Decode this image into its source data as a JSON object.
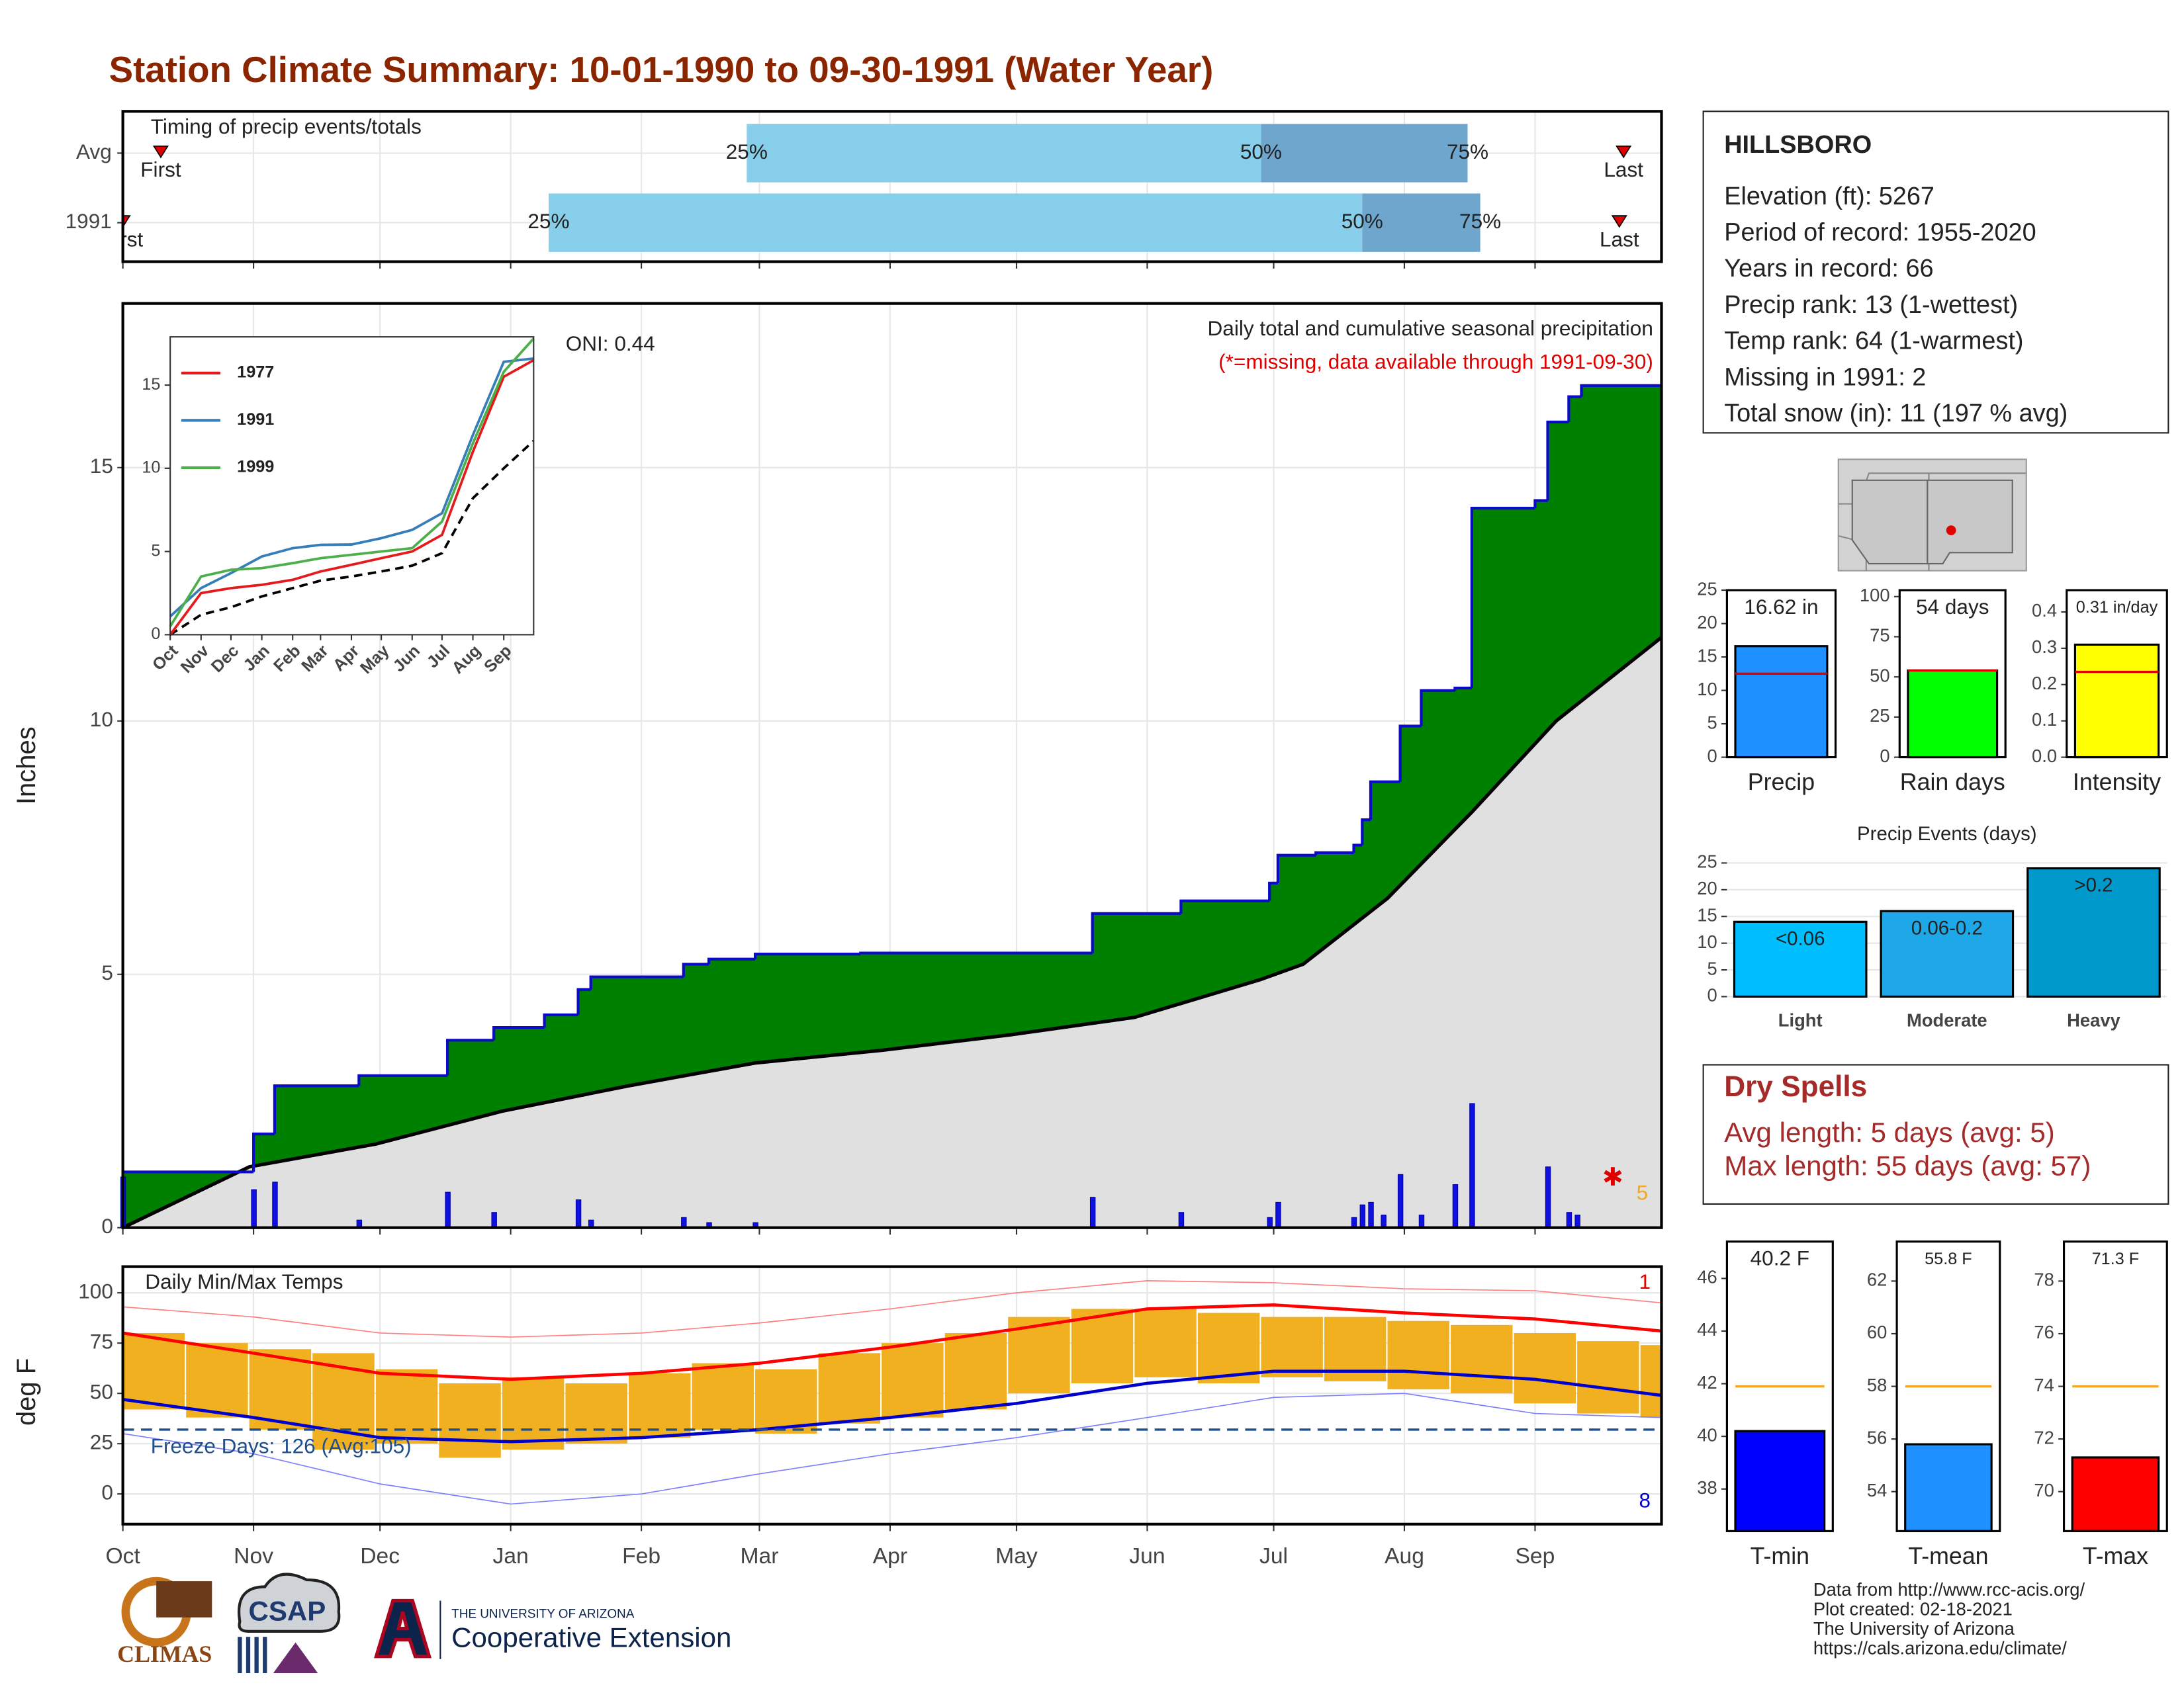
{
  "title": "Station Climate Summary: 10-01-1990 to 09-30-1991 (Water Year)",
  "station": {
    "name": "HILLSBORO",
    "lines": [
      "Elevation (ft): 5267",
      "Period of record: 1955-2020",
      "Years in record: 66",
      "Precip rank: 13 (1-wettest)",
      "Temp rank: 64 (1-warmest)",
      "Missing in 1991: 2",
      "Total snow (in): 11 (197 % avg)"
    ]
  },
  "dry_spells": {
    "title": "Dry Spells",
    "lines": [
      "Avg length: 5 days (avg: 5)",
      "Max length: 55 days (avg: 57)"
    ]
  },
  "footer": [
    "Data from http://www.rcc-acis.org/",
    "Plot created: 02-18-2021",
    "The University of Arizona",
    "https://cals.arizona.edu/climate/"
  ],
  "logos": [
    "CLIMAS",
    "CSAP",
    "THE UNIVERSITY OF ARIZONA",
    "Cooperative Extension"
  ],
  "chart_data": [
    {
      "type": "timing",
      "title": "Timing of precip events/totals",
      "categories": [
        "Avg",
        "1991"
      ],
      "first": [
        9,
        0
      ],
      "q25": [
        148,
        101
      ],
      "q50": [
        270,
        294
      ],
      "q75": [
        319,
        322
      ],
      "last": [
        356,
        355
      ],
      "labels": {
        "first": "First",
        "last": "Last",
        "q25": "25%",
        "q50": "50%",
        "q75": "75%"
      },
      "colors": [
        "#87ceeb",
        "#6fa6cd"
      ],
      "marker_color": "#e00000",
      "xlim": [
        0,
        365
      ],
      "xticks": [
        0,
        31,
        61,
        92,
        123,
        151,
        182,
        212,
        243,
        273,
        304,
        335
      ],
      "grid": true
    },
    {
      "type": "cumulative",
      "title": "Daily total and cumulative seasonal precipitation",
      "subtitle": "(*=missing, data available through 1991-09-30)",
      "annotation": "ONI: 0.44",
      "y_label": "Inches",
      "missing_count": 5,
      "xlim": [
        0,
        365
      ],
      "ylim": [
        0,
        18.24
      ],
      "yticks": [
        0,
        5,
        10,
        15
      ],
      "xticks": [
        0,
        31,
        61,
        92,
        123,
        151,
        182,
        212,
        243,
        273,
        304,
        335
      ],
      "grid": true,
      "cumulative": {
        "color": "#0a0ac8",
        "fill": "#008000",
        "x": [
          0,
          31,
          36,
          56,
          77,
          88,
          100,
          108,
          111,
          133,
          139,
          150,
          175,
          230,
          251,
          272,
          274,
          283,
          292,
          294,
          296,
          303,
          308,
          316,
          320,
          335,
          338,
          343,
          346
        ],
        "values": [
          1.1,
          1.85,
          2.8,
          3.0,
          3.7,
          3.95,
          4.2,
          4.7,
          4.95,
          5.2,
          5.3,
          5.4,
          5.42,
          6.2,
          6.45,
          6.8,
          7.35,
          7.4,
          7.55,
          8.05,
          8.8,
          9.9,
          10.6,
          10.65,
          14.2,
          14.35,
          15.9,
          16.4,
          16.62
        ]
      },
      "average": {
        "color": "#000000",
        "fill": "#e0e0e0",
        "x": [
          0,
          30,
          60,
          90,
          120,
          150,
          180,
          210,
          240,
          270,
          280,
          300,
          320,
          340,
          365
        ],
        "values": [
          0,
          1.2,
          1.65,
          2.3,
          2.8,
          3.25,
          3.5,
          3.8,
          4.15,
          4.9,
          5.2,
          6.5,
          8.2,
          10.0,
          11.65
        ]
      },
      "daily": {
        "color": "#1010e0",
        "x": [
          0,
          31,
          36,
          56,
          77,
          88,
          108,
          111,
          133,
          139,
          150,
          230,
          251,
          272,
          274,
          292,
          294,
          296,
          299,
          303,
          308,
          316,
          320,
          338,
          343,
          345
        ],
        "values": [
          1.0,
          0.75,
          0.9,
          0.15,
          0.7,
          0.3,
          0.55,
          0.15,
          0.2,
          0.1,
          0.1,
          0.6,
          0.3,
          0.2,
          0.5,
          0.2,
          0.45,
          0.5,
          0.25,
          1.05,
          0.25,
          0.85,
          2.45,
          1.2,
          0.3,
          0.25
        ]
      }
    },
    {
      "type": "inset",
      "xlim": [
        0,
        365
      ],
      "ylim": [
        0,
        17.9
      ],
      "yticks": [
        0,
        5,
        10,
        15
      ],
      "xticks": [
        {
          "value": 0,
          "label": "Oct"
        },
        {
          "value": 31,
          "label": "Nov"
        },
        {
          "value": 61,
          "label": "Dec"
        },
        {
          "value": 92,
          "label": "Jan"
        },
        {
          "value": 123,
          "label": "Feb"
        },
        {
          "value": 151,
          "label": "Mar"
        },
        {
          "value": 182,
          "label": "Apr"
        },
        {
          "value": 212,
          "label": "May"
        },
        {
          "value": 243,
          "label": "Jun"
        },
        {
          "value": 273,
          "label": "Jul"
        },
        {
          "value": 304,
          "label": "Aug"
        },
        {
          "value": 335,
          "label": "Sep"
        }
      ],
      "x": [
        0,
        31,
        61,
        92,
        123,
        151,
        182,
        212,
        243,
        273,
        304,
        335,
        365
      ],
      "series": [
        {
          "name": "1977",
          "color": "#e41a1c",
          "values": [
            0,
            2.5,
            2.8,
            3.0,
            3.3,
            3.8,
            4.2,
            4.6,
            5.0,
            6.0,
            11.0,
            15.5,
            16.5
          ]
        },
        {
          "name": "1991",
          "color": "#377eb8",
          "values": [
            1.1,
            2.8,
            3.7,
            4.7,
            5.2,
            5.4,
            5.42,
            5.8,
            6.3,
            7.3,
            12.0,
            16.4,
            16.6
          ]
        },
        {
          "name": "1999",
          "color": "#4daf4a",
          "values": [
            0.5,
            3.5,
            3.9,
            4.0,
            4.3,
            4.6,
            4.8,
            5.0,
            5.2,
            6.8,
            11.5,
            15.8,
            17.8
          ]
        }
      ],
      "average": {
        "color": "#000000",
        "values": [
          0,
          1.2,
          1.65,
          2.3,
          2.8,
          3.25,
          3.5,
          3.8,
          4.15,
          4.9,
          8.2,
          10.0,
          11.65
        ]
      }
    },
    {
      "type": "temps",
      "title": "Daily Min/Max Temps",
      "y_label": "deg F",
      "freeze_label": "Freeze Days: 126 (Avg:105)",
      "freeze_value": 32,
      "record_high_count": 1,
      "record_low_count": 8,
      "xlim": [
        0,
        365
      ],
      "ylim": [
        -15,
        113
      ],
      "yticks": [
        0,
        25,
        50,
        75,
        100
      ],
      "xticks": [
        {
          "value": 0,
          "label": "Oct"
        },
        {
          "value": 31,
          "label": "Nov"
        },
        {
          "value": 61,
          "label": "Dec"
        },
        {
          "value": 92,
          "label": "Jan"
        },
        {
          "value": 123,
          "label": "Feb"
        },
        {
          "value": 151,
          "label": "Mar"
        },
        {
          "value": 182,
          "label": "Apr"
        },
        {
          "value": 212,
          "label": "May"
        },
        {
          "value": 243,
          "label": "Jun"
        },
        {
          "value": 273,
          "label": "Jul"
        },
        {
          "value": 304,
          "label": "Aug"
        },
        {
          "value": 335,
          "label": "Sep"
        }
      ],
      "avg_x": [
        0,
        31,
        61,
        92,
        123,
        151,
        182,
        212,
        243,
        273,
        304,
        335,
        365
      ],
      "avg_max": {
        "color": "#ff0000",
        "values": [
          80,
          70,
          60,
          57,
          60,
          65,
          73,
          82,
          92,
          94,
          90,
          87,
          81
        ]
      },
      "avg_min": {
        "color": "#0000cd",
        "values": [
          47,
          38,
          28,
          26,
          28,
          32,
          38,
          45,
          55,
          61,
          61,
          57,
          49
        ]
      },
      "record_max": {
        "color": "#ff8080",
        "values": [
          93,
          88,
          80,
          78,
          80,
          85,
          92,
          100,
          106,
          105,
          102,
          101,
          95
        ]
      },
      "record_min": {
        "color": "#8080ff",
        "values": [
          30,
          20,
          5,
          -5,
          0,
          10,
          20,
          28,
          38,
          48,
          50,
          40,
          38
        ]
      },
      "daily": {
        "color": "#f0b020",
        "x": [
          0,
          15,
          30,
          45,
          60,
          75,
          90,
          105,
          120,
          135,
          150,
          165,
          180,
          195,
          210,
          225,
          240,
          255,
          270,
          285,
          300,
          315,
          330,
          345,
          360
        ],
        "lows": [
          42,
          38,
          32,
          22,
          25,
          18,
          22,
          25,
          28,
          32,
          30,
          35,
          38,
          42,
          50,
          55,
          58,
          55,
          58,
          56,
          52,
          50,
          45,
          40,
          38
        ],
        "highs": [
          80,
          75,
          72,
          70,
          62,
          55,
          58,
          55,
          60,
          65,
          62,
          70,
          75,
          80,
          88,
          92,
          92,
          90,
          88,
          88,
          86,
          84,
          80,
          76,
          74
        ]
      }
    },
    {
      "type": "single_bar",
      "categories": [
        "Precip"
      ],
      "values": [
        16.62
      ],
      "value_labels": [
        "16.62 in"
      ],
      "reference": 12.5,
      "color": "#1e90ff",
      "reference_color": "#e00000",
      "ylim": [
        0,
        25
      ],
      "yticks": [
        0,
        5,
        10,
        15,
        20,
        25
      ]
    },
    {
      "type": "single_bar",
      "categories": [
        "Rain days"
      ],
      "values": [
        54
      ],
      "value_labels": [
        "54 days"
      ],
      "reference": 54,
      "color": "#00ff00",
      "reference_color": "#e00000",
      "ylim": [
        0,
        104
      ],
      "yticks": [
        0,
        25,
        50,
        75,
        100
      ]
    },
    {
      "type": "single_bar",
      "categories": [
        "Intensity"
      ],
      "values": [
        0.31
      ],
      "value_labels": [
        "0.31 in/day"
      ],
      "reference": 0.235,
      "color": "#ffff00",
      "reference_color": "#e00000",
      "ylim": [
        0,
        0.46
      ],
      "yticks": [
        {
          "value": 0,
          "label": "0.0"
        },
        0.1,
        0.2,
        0.3,
        0.4
      ]
    },
    {
      "type": "bar",
      "title": "Precip Events (days)",
      "categories": [
        "Light",
        "Moderate",
        "Heavy"
      ],
      "values": [
        14,
        16,
        24
      ],
      "bar_labels": [
        "<0.06",
        "0.06-0.2",
        ">0.2"
      ],
      "colors": [
        "#00bfff",
        "#1ea8e8",
        "#0099cc"
      ],
      "ylim": [
        0,
        25
      ],
      "yticks": [
        0,
        5,
        10,
        15,
        20,
        25
      ],
      "grid": true
    },
    {
      "type": "single_bar",
      "categories": [
        "T-min"
      ],
      "values": [
        40.2
      ],
      "value_labels": [
        "40.2 F"
      ],
      "reference": 41.9,
      "color": "#0000ff",
      "reference_color": "#f5a623",
      "ylim": [
        36.4,
        47.4
      ],
      "yticks": [
        38,
        40,
        42,
        44,
        46
      ]
    },
    {
      "type": "single_bar",
      "categories": [
        "T-mean"
      ],
      "values": [
        55.8
      ],
      "value_labels": [
        "55.8 F"
      ],
      "reference": 58,
      "color": "#1e90ff",
      "reference_color": "#f5a623",
      "ylim": [
        52.5,
        63.5
      ],
      "yticks": [
        54,
        56,
        58,
        60,
        62
      ]
    },
    {
      "type": "single_bar",
      "categories": [
        "T-max"
      ],
      "values": [
        71.3
      ],
      "value_labels": [
        "71.3 F"
      ],
      "reference": 74,
      "color": "#ff0000",
      "reference_color": "#f5a623",
      "ylim": [
        68.5,
        79.5
      ],
      "yticks": [
        70,
        72,
        74,
        76,
        78
      ]
    }
  ]
}
